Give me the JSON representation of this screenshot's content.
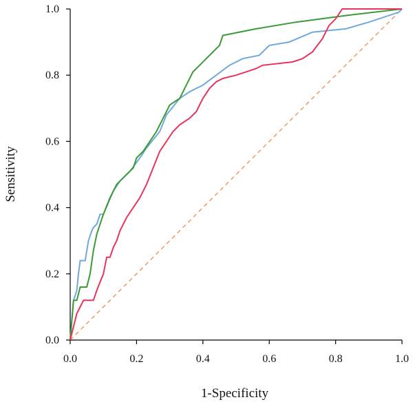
{
  "chart_data": {
    "type": "line",
    "title": "",
    "xlabel": "1-Specificity",
    "ylabel": "Sensitivity",
    "xlim": [
      0,
      1
    ],
    "ylim": [
      0,
      1
    ],
    "grid": false,
    "x_ticks": [
      "0.0",
      "0.2",
      "0.4",
      "0.6",
      "0.8",
      "1.0"
    ],
    "y_ticks": [
      "0.0",
      "0.2",
      "0.4",
      "0.6",
      "0.8",
      "1.0"
    ],
    "reference_line": {
      "x": [
        0,
        1
      ],
      "y": [
        0,
        1
      ],
      "color": "#f08a4b",
      "style": "dashed"
    },
    "series": [
      {
        "color": "#6fa8dc",
        "x": [
          0,
          0.005,
          0.01,
          0.02,
          0.025,
          0.03,
          0.045,
          0.055,
          0.065,
          0.07,
          0.08,
          0.09,
          0.1,
          0.13,
          0.15,
          0.16,
          0.18,
          0.21,
          0.23,
          0.27,
          0.29,
          0.33,
          0.36,
          0.4,
          0.44,
          0.48,
          0.52,
          0.57,
          0.6,
          0.66,
          0.73,
          0.83,
          0.9,
          0.99,
          1.0
        ],
        "y": [
          0,
          0.06,
          0.12,
          0.15,
          0.2,
          0.24,
          0.24,
          0.3,
          0.33,
          0.34,
          0.35,
          0.38,
          0.38,
          0.45,
          0.48,
          0.49,
          0.51,
          0.55,
          0.58,
          0.63,
          0.68,
          0.73,
          0.75,
          0.77,
          0.8,
          0.83,
          0.85,
          0.86,
          0.89,
          0.9,
          0.93,
          0.94,
          0.96,
          0.99,
          1.0
        ]
      },
      {
        "color": "#3a9a34",
        "x": [
          0,
          0.01,
          0.02,
          0.03,
          0.05,
          0.06,
          0.07,
          0.08,
          0.1,
          0.12,
          0.14,
          0.15,
          0.17,
          0.19,
          0.2,
          0.22,
          0.24,
          0.26,
          0.28,
          0.3,
          0.33,
          0.35,
          0.37,
          0.39,
          0.41,
          0.43,
          0.45,
          0.46,
          0.56,
          0.68,
          0.83,
          1.0
        ],
        "y": [
          0,
          0.12,
          0.12,
          0.16,
          0.16,
          0.2,
          0.27,
          0.32,
          0.38,
          0.43,
          0.47,
          0.48,
          0.5,
          0.52,
          0.55,
          0.57,
          0.6,
          0.63,
          0.67,
          0.71,
          0.73,
          0.77,
          0.81,
          0.83,
          0.85,
          0.87,
          0.89,
          0.92,
          0.94,
          0.96,
          0.98,
          1.0
        ]
      },
      {
        "color": "#e8335c",
        "x": [
          0,
          0.01,
          0.02,
          0.04,
          0.07,
          0.08,
          0.1,
          0.11,
          0.12,
          0.13,
          0.14,
          0.15,
          0.17,
          0.19,
          0.21,
          0.23,
          0.25,
          0.27,
          0.29,
          0.31,
          0.33,
          0.36,
          0.38,
          0.4,
          0.42,
          0.44,
          0.46,
          0.5,
          0.53,
          0.56,
          0.58,
          0.67,
          0.7,
          0.73,
          0.76,
          0.78,
          0.8,
          0.82,
          0.85,
          0.99,
          1.0
        ],
        "y": [
          0,
          0.04,
          0.08,
          0.12,
          0.12,
          0.15,
          0.2,
          0.25,
          0.25,
          0.28,
          0.3,
          0.33,
          0.37,
          0.4,
          0.43,
          0.47,
          0.52,
          0.57,
          0.6,
          0.63,
          0.65,
          0.67,
          0.69,
          0.73,
          0.76,
          0.78,
          0.79,
          0.8,
          0.81,
          0.82,
          0.83,
          0.84,
          0.85,
          0.87,
          0.91,
          0.95,
          0.97,
          1.0,
          1.0,
          1.0,
          1.0
        ]
      }
    ]
  }
}
